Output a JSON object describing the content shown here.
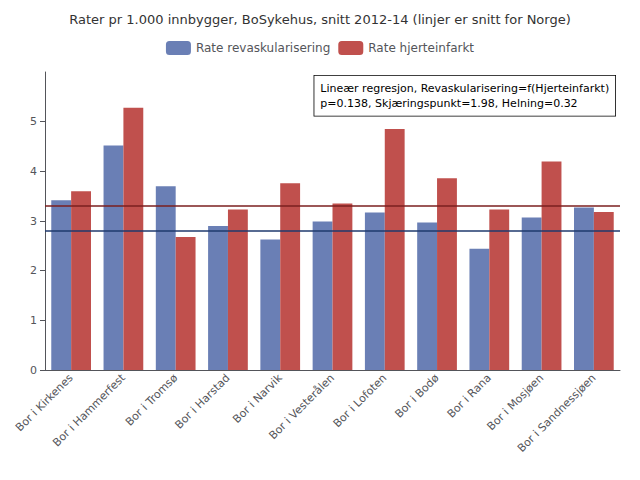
{
  "chart_data": {
    "type": "bar",
    "title": "Rater pr 1.000 innbygger, BoSykehus, snitt 2012-14 (linjer er snitt for Norge)",
    "categories": [
      "Bor i Kirkenes",
      "Bor i Hammerfest",
      "Bor i Tromsø",
      "Bor i Harstad",
      "Bor i Narvik",
      "Bor i Vesterålen",
      "Bor i Lofoten",
      "Bor i Bodø",
      "Bor i Rana",
      "Bor i Mosjøen",
      "Bor i Sandnessjøen"
    ],
    "series": [
      {
        "name": "Rate revaskularisering",
        "color": "#6a7fb5",
        "values": [
          3.42,
          4.52,
          3.7,
          2.9,
          2.63,
          2.99,
          3.17,
          2.97,
          2.44,
          3.07,
          3.27
        ]
      },
      {
        "name": "Rate hjerteinfarkt",
        "color": "#c0504d",
        "values": [
          3.6,
          5.28,
          2.68,
          3.23,
          3.76,
          3.35,
          4.85,
          3.86,
          3.23,
          4.2,
          3.18
        ]
      }
    ],
    "hlines": [
      {
        "y": 2.81,
        "color": "#1f3a6e"
      },
      {
        "y": 3.3,
        "color": "#7b1f1f"
      }
    ],
    "annotation": "Lineær regresjon, Revaskularisering=f(Hjerteinfarkt)\np=0.138, Skjæringspunkt=1.98, Helning=0.32",
    "ylim": [
      0,
      6
    ],
    "yticks": [
      0,
      1,
      2,
      3,
      4,
      5
    ],
    "grid": false,
    "legend": "top"
  }
}
